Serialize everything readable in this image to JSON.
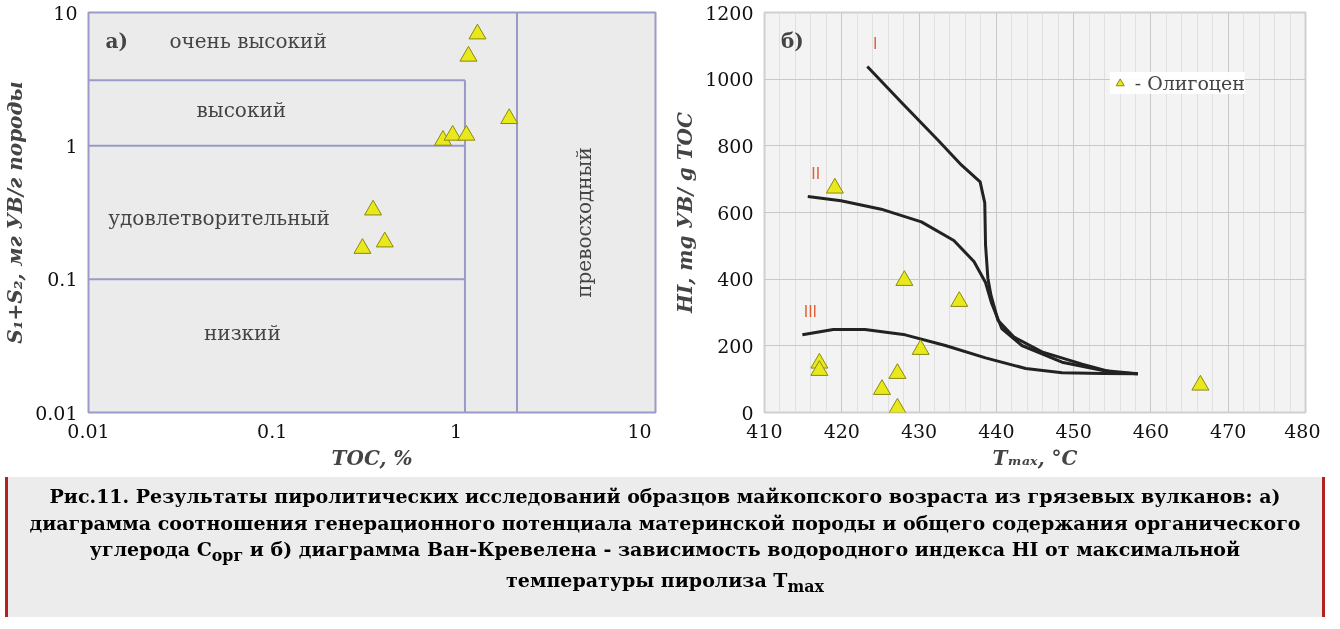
{
  "chart_data": [
    {
      "type": "scatter",
      "xlabel": "TOC, %",
      "ylabel": "S₁+S₂, мг УВ/г породы",
      "log": "xy",
      "xlim": [
        0.01,
        12.2
      ],
      "ylim": [
        0.01,
        10
      ],
      "xticks": [
        0.01,
        0.1,
        1,
        10
      ],
      "yticks": [
        0.01,
        0.1,
        1,
        10
      ],
      "grid": false,
      "marker": "triangle",
      "series": [
        {
          "color": "#e8e81c",
          "x": [
            1.31,
            1.17,
            0.85,
            0.96,
            1.14,
            1.95,
            0.354,
            0.31,
            0.41
          ],
          "values": [
            6.9,
            4.7,
            1.1,
            1.2,
            1.2,
            1.6,
            0.33,
            0.17,
            0.19
          ]
        }
      ],
      "ref_lines": [
        {
          "axis": "y",
          "value": 3.1,
          "color": "#9a9ac8"
        },
        {
          "axis": "y",
          "value": 1,
          "color": "#9a9ac8"
        },
        {
          "axis": "y",
          "value": 0.1,
          "color": "#9a9ac8"
        },
        {
          "axis": "x",
          "value": 1.12,
          "color": "#9a9ac8"
        },
        {
          "axis": "x",
          "value": 2.15,
          "color": "#9a9ac8"
        }
      ],
      "annotations": [
        "а)",
        "очень высокий",
        "высокий",
        "удовлетворительный",
        "низкий",
        "превосходный"
      ]
    },
    {
      "type": "scatter",
      "xlabel": "Tₘₐₓ, °C",
      "ylabel": "HI, mg УВ/ g TOC",
      "xlim": [
        410,
        480
      ],
      "ylim": [
        0,
        1200
      ],
      "xticks": [
        410,
        420,
        430,
        440,
        450,
        460,
        470,
        480
      ],
      "yticks": [
        0,
        200,
        400,
        600,
        800,
        1000,
        1200
      ],
      "grid": true,
      "legend": "top right",
      "series": [
        {
          "type": "line",
          "name": "I",
          "color": "#222222",
          "x": [
            423.3,
            427.7,
            432.4,
            435.5,
            437.9,
            438.5,
            438.6,
            438.9,
            439.3,
            440.2,
            442.3,
            445.9,
            451.1,
            455.3,
            458.3
          ],
          "values": [
            1038,
            931,
            818,
            742,
            692,
            629,
            503,
            403,
            352,
            277,
            226,
            182,
            145,
            119,
            116
          ]
        },
        {
          "type": "line",
          "name": "II",
          "color": "#222222",
          "x": [
            415.6,
            419.9,
            425.1,
            430.3,
            434.5,
            437.1,
            438.6,
            439.4,
            440.7,
            443.3,
            448.5,
            453.8,
            458.3
          ],
          "values": [
            648,
            635,
            610,
            572,
            516,
            453,
            390,
            327,
            252,
            201,
            151,
            126,
            116
          ]
        },
        {
          "type": "line",
          "name": "III",
          "color": "#222222",
          "x": [
            414.9,
            418.9,
            423.0,
            428.2,
            433.4,
            438.6,
            443.8,
            448.5,
            453.8,
            458.3
          ],
          "values": [
            233,
            249,
            249,
            233,
            201,
            164,
            132,
            119,
            117,
            116
          ]
        },
        {
          "type": "scatter",
          "name": "- Олигоцен",
          "color": "#e8e81c",
          "marker": "triangle",
          "x": [
            419.1,
            428.1,
            435.2,
            430.2,
            417.1,
            417.1,
            427.2,
            425.2,
            427.2,
            466.4
          ],
          "values": [
            673,
            396,
            333,
            189,
            148,
            126,
            117,
            69,
            13,
            82
          ]
        }
      ],
      "annotations": [
        "б)"
      ]
    },
    {
      "type": "other",
      "annotations": [
        "Рис.11.  Результаты пиролитических исследований образцов майкопского возраста из грязевых вулканов: а) диаграмма соотношения генерационного потенциала материнской породы и общего содержания органического углерода C$_{орг}$ и б) диаграмма Ван-Кревелена - зависимость водородного индекса HI от максимальной температуры пиролиза T$_{max}$"
      ]
    }
  ]
}
